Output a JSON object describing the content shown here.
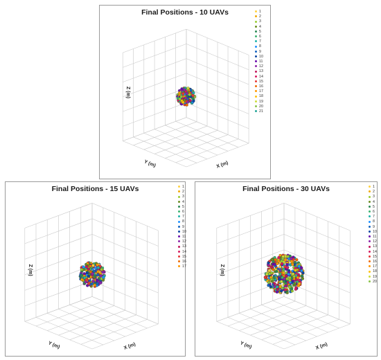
{
  "chart_data": [
    {
      "type": "scatter",
      "title": "Final Positions - 10 UAVs",
      "xlabel": "X (m)",
      "ylabel": "Y (m)",
      "zlabel": "Z (m)",
      "grid": true,
      "legend_position": "right",
      "legend": [
        "1",
        "2",
        "3",
        "4",
        "5",
        "6",
        "7",
        "8",
        "9",
        "10",
        "11",
        "12",
        "13",
        "14",
        "15",
        "16",
        "17",
        "18",
        "19",
        "20",
        "21"
      ]
    },
    {
      "type": "scatter",
      "title": "Final Positions - 15 UAVs",
      "xlabel": "X (m)",
      "ylabel": "Y (m)",
      "zlabel": "Z (m)",
      "grid": true,
      "legend_position": "right",
      "legend": [
        "1",
        "2",
        "3",
        "4",
        "5",
        "6",
        "7",
        "8",
        "9",
        "10",
        "11",
        "12",
        "13",
        "14",
        "15",
        "16",
        "17"
      ]
    },
    {
      "type": "scatter",
      "title": "Final Positions - 30 UAVs",
      "xlabel": "X (m)",
      "ylabel": "Y (m)",
      "zlabel": "Z (m)",
      "grid": true,
      "legend_position": "right",
      "legend": [
        "1",
        "2",
        "3",
        "4",
        "5",
        "6",
        "7",
        "8",
        "9",
        "10",
        "11",
        "12",
        "13",
        "14",
        "15",
        "16",
        "17",
        "18",
        "19",
        "20"
      ]
    }
  ],
  "colors": [
    "#ffd23f",
    "#f2a900",
    "#9acd32",
    "#6b8e23",
    "#2e8b57",
    "#3cb371",
    "#20b2aa",
    "#1e90ff",
    "#1565c0",
    "#0d47a1",
    "#6a0dad",
    "#8e24aa",
    "#c2185b",
    "#d81b60",
    "#e53935",
    "#ef6c00",
    "#ff9800",
    "#ffc107",
    "#cddc39",
    "#8bc34a",
    "#26a69a"
  ]
}
